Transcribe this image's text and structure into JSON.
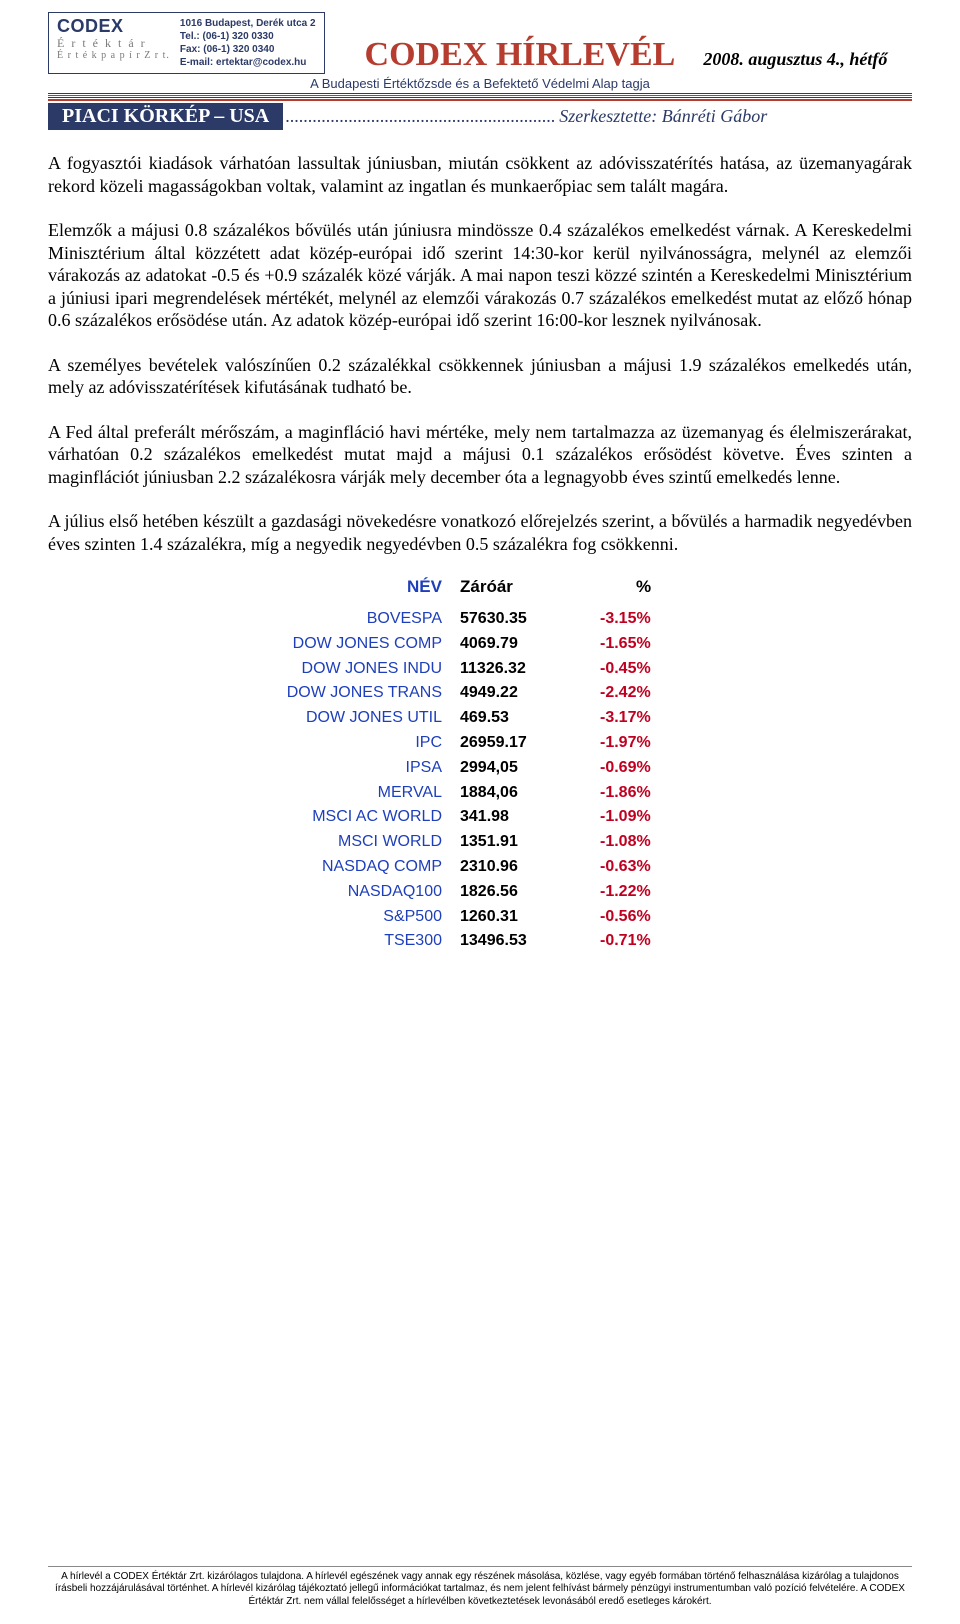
{
  "header": {
    "logo": {
      "brand": "CODEX",
      "sub1": "É r t é k t á r",
      "sub2": "É r t é k p a p í r  Z r t.",
      "address": "1016 Budapest, Derék utca 2",
      "tel": "Tel.: (06-1) 320 0330",
      "fax": "Fax: (06-1) 320 0340",
      "email": "E-mail: ertektar@codex.hu"
    },
    "title": "CODEX HÍRLEVÉL",
    "date": "2008. augusztus 4., hétfő",
    "subtitle": "A Budapesti Értéktőzsde és a Befektető Védelmi Alap tagja"
  },
  "section": {
    "title": "PIACI KÖRKÉP – USA",
    "editor_prefix": "Szerkesztette: ",
    "editor_name": "Bánréti Gábor"
  },
  "paragraphs": {
    "p1": "A fogyasztói kiadások várhatóan lassultak júniusban, miután csökkent az adóvisszatérítés hatása, az üzemanyagárak rekord közeli magasságokban voltak, valamint az ingatlan és munkaerőpiac sem talált magára.",
    "p2": "Elemzők a májusi 0.8 százalékos bővülés után júniusra mindössze 0.4 százalékos emelkedést várnak. A Kereskedelmi Minisztérium által közzétett adat közép-európai idő szerint 14:30-kor kerül nyilvánosságra, melynél az elemzői várakozás az adatokat -0.5 és +0.9 százalék közé várják. A mai napon teszi közzé szintén a Kereskedelmi Minisztérium a júniusi ipari megrendelések mértékét, melynél az elemzői várakozás 0.7 százalékos emelkedést mutat az előző hónap 0.6 százalékos erősödése után. Az adatok közép-európai idő szerint 16:00-kor lesznek nyilvánosak.",
    "p3": "A személyes bevételek valószínűen 0.2 százalékkal csökkennek júniusban a májusi 1.9 százalékos emelkedés után, mely az adóvisszatérítések kifutásának tudható be.",
    "p4": "A Fed által preferált mérőszám, a maginfláció havi mértéke, mely nem tartalmazza az üzemanyag és élelmiszerárakat, várhatóan 0.2 százalékos emelkedést mutat majd a májusi 0.1 százalékos erősödést követve. Éves szinten a maginflációt júniusban 2.2 százalékosra várják mely december óta a legnagyobb éves szintű emelkedés lenne.",
    "p5": "A július első hetében készült a gazdasági növekedésre vonatkozó előrejelzés szerint, a bővülés a harmadik negyedévben éves szinten 1.4 százalékra, míg a negyedik negyedévben 0.5 százalékra fog csökkenni."
  },
  "indexTable": {
    "headers": {
      "name": "NÉV",
      "close": "Záróár",
      "pct": "%"
    },
    "rows": [
      {
        "name": "BOVESPA",
        "close": "57630.35",
        "pct": "-3.15%"
      },
      {
        "name": "DOW JONES COMP",
        "close": "4069.79",
        "pct": "-1.65%"
      },
      {
        "name": "DOW JONES INDU",
        "close": "11326.32",
        "pct": "-0.45%"
      },
      {
        "name": "DOW JONES TRANS",
        "close": "4949.22",
        "pct": "-2.42%"
      },
      {
        "name": "DOW JONES UTIL",
        "close": "469.53",
        "pct": "-3.17%"
      },
      {
        "name": "IPC",
        "close": "26959.17",
        "pct": "-1.97%"
      },
      {
        "name": "IPSA",
        "close": "2994,05",
        "pct": "-0.69%"
      },
      {
        "name": "MERVAL",
        "close": "1884,06",
        "pct": "-1.86%"
      },
      {
        "name": "MSCI AC WORLD",
        "close": "341.98",
        "pct": "-1.09%"
      },
      {
        "name": "MSCI WORLD",
        "close": "1351.91",
        "pct": "-1.08%"
      },
      {
        "name": "NASDAQ COMP",
        "close": "2310.96",
        "pct": "-0.63%"
      },
      {
        "name": "NASDAQ100",
        "close": "1826.56",
        "pct": "-1.22%"
      },
      {
        "name": "S&P500",
        "close": "1260.31",
        "pct": "-0.56%"
      },
      {
        "name": "TSE300",
        "close": "13496.53",
        "pct": "-0.71%"
      }
    ],
    "colors": {
      "name": "#1e3fbb",
      "close": "#000000",
      "pct": "#c00020"
    }
  },
  "footer": {
    "text": "A hírlevél a CODEX Értéktár Zrt. kizárólagos tulajdona. A hírlevél egészének vagy annak egy részének másolása, közlése, vagy egyéb formában történő felhasználása kizárólag a tulajdonos írásbeli hozzájárulásával történhet. A hírlevél kizárólag tájékoztató jellegű információkat tartalmaz, és nem jelent felhívást bármely pénzügyi instrumentumban való pozíció felvételére. A CODEX Értéktár Zrt. nem vállal felelősséget a hírlevélben következtetések levonásából eredő esetleges károkért."
  }
}
